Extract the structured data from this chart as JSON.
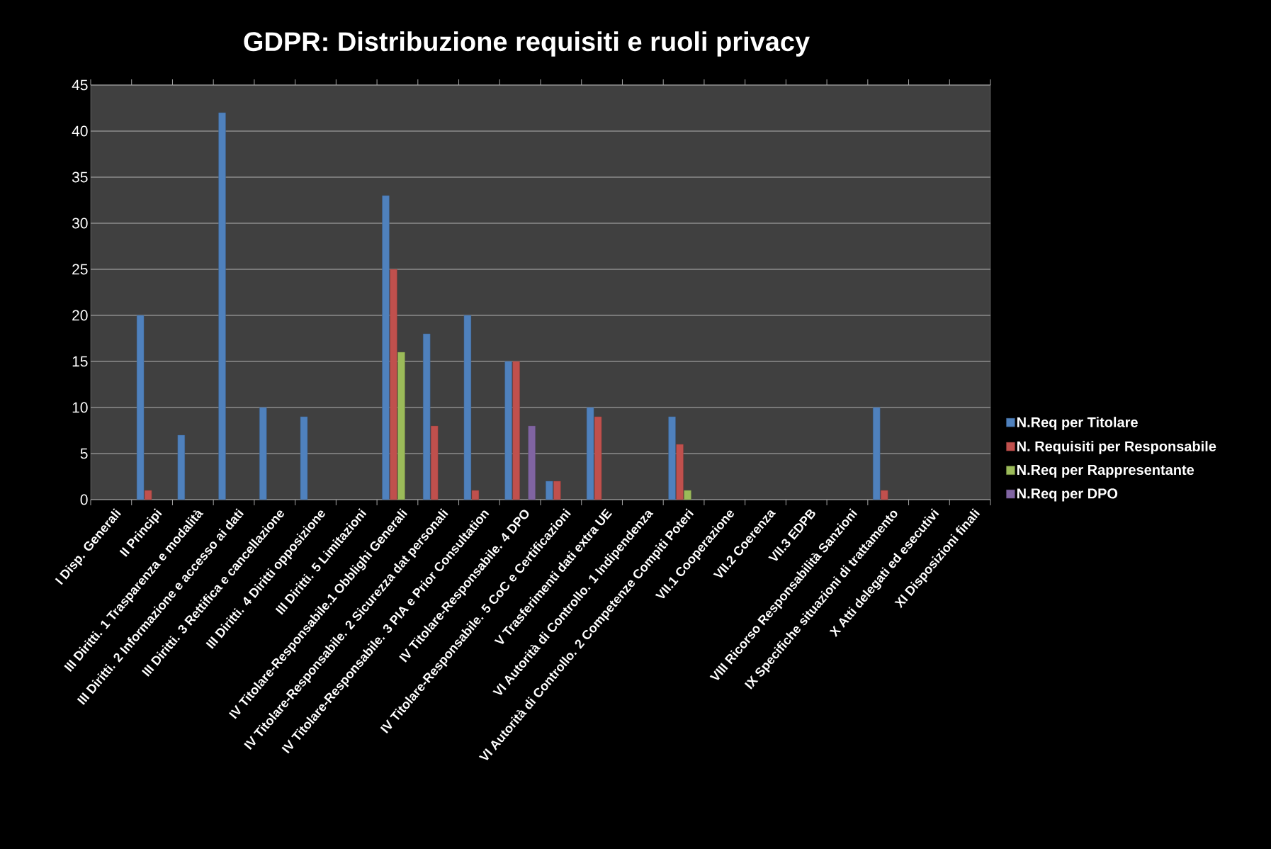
{
  "chart_data": {
    "type": "bar",
    "title": "GDPR: Distribuzione requisiti e ruoli privacy",
    "categories": [
      "I Disp. Generali",
      "II Principi",
      "III Diritti. 1 Trasparenza e modalità",
      "III Diritti. 2 Informazione e accesso ai dati",
      "III Diritti. 3 Rettifica e cancellazione",
      "III Diritti. 4 Diritti opposizione",
      "III Diritti. 5 Limitazioni",
      "IV Titolare-Responsabile.1 Obblighi Generali",
      "IV Titolare-Responsabile. 2 Sicurezza dat personali",
      "IV Titolare-Responsabile. 3 PIA e Prior Consultation",
      "IV Titolare-Responsabile. 4 DPO",
      "IV Titolare-Responsabile. 5 CoC e Certificazioni",
      "V Trasferimenti dati extra UE",
      "VI Autorità di Controllo. 1 Indipendenza",
      "VI Autorità di Controllo. 2 Competenze Compiti Poteri",
      "VII.1 Cooperazione",
      "VII.2 Coerenza",
      "VII.3 EDPB",
      "VIII Ricorso Responsabilità Sanzioni",
      "IX Specifiche situazioni di trattamento",
      "X Atti delegati ed esecutivi",
      "XI Disposizioni finali"
    ],
    "series": [
      {
        "name": "N.Req per Titolare",
        "color": "#4f81bd",
        "values": [
          null,
          20,
          7,
          42,
          10,
          9,
          null,
          33,
          18,
          20,
          15,
          2,
          10,
          null,
          9,
          null,
          null,
          null,
          null,
          10,
          null,
          null
        ]
      },
      {
        "name": "N. Requisiti per Responsabile",
        "color": "#c0504d",
        "values": [
          null,
          1,
          null,
          null,
          null,
          null,
          null,
          25,
          8,
          1,
          15,
          2,
          9,
          null,
          6,
          null,
          null,
          null,
          null,
          1,
          null,
          null
        ]
      },
      {
        "name": "N.Req per Rappresentante",
        "color": "#9bbb59",
        "values": [
          null,
          null,
          null,
          null,
          null,
          null,
          null,
          16,
          null,
          null,
          null,
          null,
          null,
          null,
          1,
          null,
          null,
          null,
          null,
          null,
          null,
          null
        ]
      },
      {
        "name": "N.Req per DPO",
        "color": "#8064a2",
        "values": [
          null,
          null,
          null,
          null,
          null,
          null,
          null,
          null,
          null,
          null,
          8,
          null,
          null,
          null,
          null,
          null,
          null,
          null,
          null,
          null,
          null,
          null
        ]
      }
    ],
    "ylim": [
      0,
      45
    ],
    "yticks": [
      0,
      5,
      10,
      15,
      20,
      25,
      30,
      35,
      40,
      45
    ],
    "grid": "y",
    "legend": "right"
  }
}
